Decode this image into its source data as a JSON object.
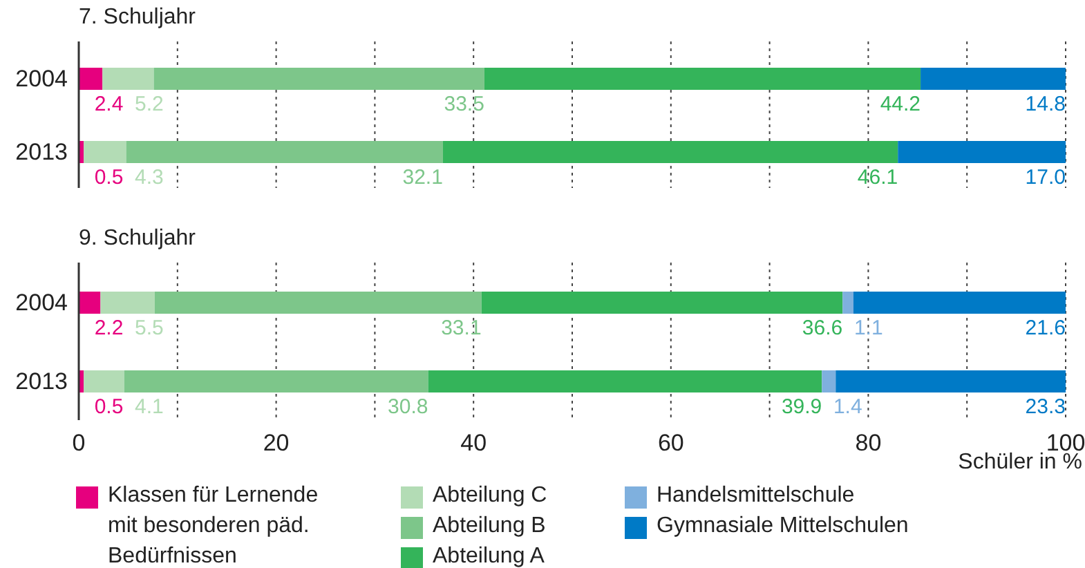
{
  "chart_data": [
    {
      "type": "bar",
      "orientation": "horizontal",
      "stacked": true,
      "title": "7. Schuljahr",
      "categories": [
        "2004",
        "2013"
      ],
      "series": [
        {
          "color": "#e6007e",
          "values": [
            2.4,
            0.5
          ],
          "value_labels": [
            "2.4",
            "0.5"
          ]
        },
        {
          "color": "#b3dcb5",
          "values": [
            5.2,
            4.3
          ],
          "value_labels": [
            "5.2",
            "4.3"
          ]
        },
        {
          "color": "#7dc68a",
          "values": [
            33.5,
            32.1
          ],
          "value_labels": [
            "33.5",
            "32.1"
          ]
        },
        {
          "color": "#34b45a",
          "values": [
            44.2,
            46.1
          ],
          "value_labels": [
            "44.2",
            "46.1"
          ]
        },
        {
          "color": "#007ac6",
          "values": [
            14.8,
            17.0
          ],
          "value_labels": [
            "14.8",
            "17.0"
          ]
        }
      ],
      "xlim": [
        0,
        100
      ],
      "xticks": [
        0,
        {
          "value": 10,
          "label": null
        },
        20,
        {
          "value": 30,
          "label": null
        },
        40,
        {
          "value": 50,
          "label": null
        },
        60,
        {
          "value": 70,
          "label": null
        },
        80,
        {
          "value": 90,
          "label": null
        },
        100
      ],
      "grid": "x",
      "tick_labels": "y"
    },
    {
      "type": "bar",
      "orientation": "horizontal",
      "stacked": true,
      "title": "9. Schuljahr",
      "xlabel": "Schüler in %",
      "categories": [
        "2004",
        "2013"
      ],
      "series": [
        {
          "name": "Klassen für Lernende mit besonderen päd. Bedürfnissen",
          "color": "#e6007e",
          "values": [
            2.2,
            0.5
          ],
          "value_labels": [
            "2.2",
            "0.5"
          ]
        },
        {
          "name": "Abteilung C",
          "color": "#b3dcb5",
          "values": [
            5.5,
            4.1
          ],
          "value_labels": [
            "5.5",
            "4.1"
          ]
        },
        {
          "name": "Abteilung B",
          "color": "#7dc68a",
          "values": [
            33.1,
            30.8
          ],
          "value_labels": [
            "33.1",
            "30.8"
          ]
        },
        {
          "name": "Abteilung A",
          "color": "#34b45a",
          "values": [
            36.6,
            39.9
          ],
          "value_labels": [
            "36.6",
            "39.9"
          ]
        },
        {
          "name": "Handelsmittelschule",
          "color": "#7fb0de",
          "values": [
            1.1,
            1.4
          ],
          "value_labels": [
            "1.1",
            "1.4"
          ]
        },
        {
          "name": "Gymnasiale Mittelschulen",
          "color": "#007ac6",
          "values": [
            21.6,
            23.3
          ],
          "value_labels": [
            "21.6",
            "23.3"
          ]
        }
      ],
      "xlim": [
        0,
        100
      ],
      "xticks": [
        0,
        {
          "value": 10,
          "label": null
        },
        20,
        {
          "value": 30,
          "label": null
        },
        40,
        {
          "value": 50,
          "label": null
        },
        60,
        {
          "value": 70,
          "label": null
        },
        80,
        {
          "value": 90,
          "label": null
        },
        100
      ],
      "grid": "x",
      "legend": "bottom"
    }
  ]
}
